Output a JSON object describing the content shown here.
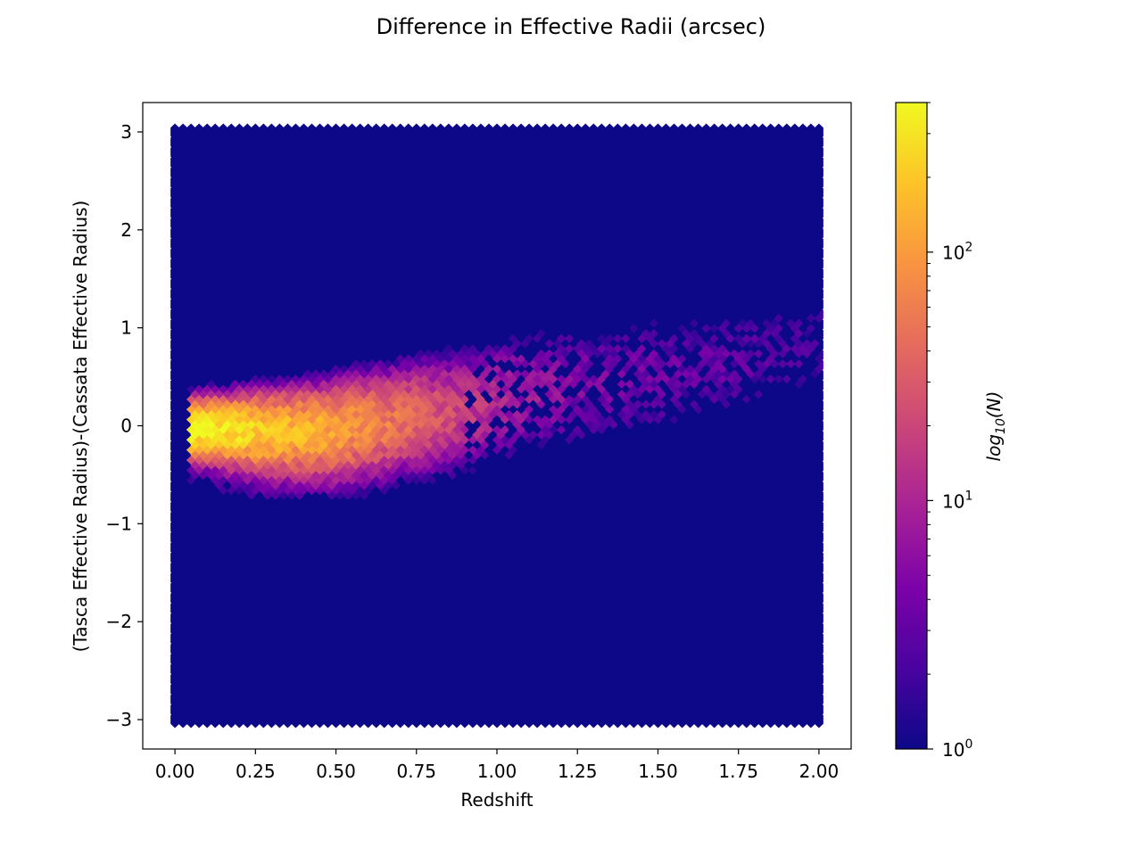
{
  "chart_data": {
    "type": "heatmap",
    "subtype": "hexbin",
    "title": "Difference in Effective Radii (arcsec)",
    "xlabel": "Redshift",
    "ylabel": "(Tasca Effective Radius)-(Cassata Effective Radius)",
    "xlim": [
      -0.1,
      2.1
    ],
    "ylim": [
      -3.3,
      3.3
    ],
    "xticks": [
      "0.00",
      "0.25",
      "0.50",
      "0.75",
      "1.00",
      "1.25",
      "1.50",
      "1.75",
      "2.00"
    ],
    "yticks": [
      "−3",
      "−2",
      "−1",
      "0",
      "1",
      "2",
      "3"
    ],
    "x_extent": [
      0.0,
      2.0
    ],
    "y_extent": [
      -3.0,
      3.0
    ],
    "colorscale": "plasma",
    "colorbar": {
      "label": "log10(N)",
      "scale": "log",
      "range": [
        1,
        400
      ],
      "ticks": [
        {
          "base": "10",
          "exp": "0"
        },
        {
          "base": "10",
          "exp": "1"
        },
        {
          "base": "10",
          "exp": "2"
        }
      ]
    },
    "background_count": 1,
    "density_peak": {
      "x": 0.07,
      "y": 0.0,
      "count": 400
    },
    "ridge": [
      {
        "x": 0.07,
        "y": 0.0,
        "count": 400
      },
      {
        "x": 0.2,
        "y": -0.01,
        "count": 300
      },
      {
        "x": 0.3,
        "y": -0.02,
        "count": 220
      },
      {
        "x": 0.4,
        "y": -0.02,
        "count": 160
      },
      {
        "x": 0.5,
        "y": 0.0,
        "count": 120
      },
      {
        "x": 0.6,
        "y": 0.05,
        "count": 80
      },
      {
        "x": 0.75,
        "y": 0.12,
        "count": 40
      },
      {
        "x": 0.9,
        "y": 0.2,
        "count": 18
      },
      {
        "x": 1.05,
        "y": 0.35,
        "count": 9
      },
      {
        "x": 1.25,
        "y": 0.45,
        "count": 5
      },
      {
        "x": 1.5,
        "y": 0.55,
        "count": 4
      },
      {
        "x": 1.75,
        "y": 0.7,
        "count": 3
      },
      {
        "x": 2.0,
        "y": 0.85,
        "count": 2
      }
    ]
  }
}
